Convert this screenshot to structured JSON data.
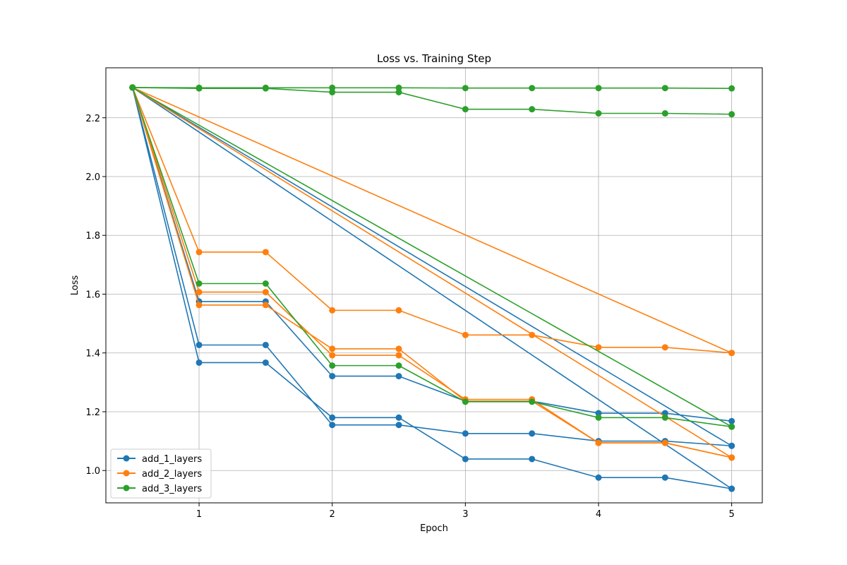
{
  "chart_data": {
    "type": "line",
    "title": "Loss vs. Training Step",
    "xlabel": "Epoch",
    "ylabel": "Loss",
    "xlim": [
      0.3,
      5.23
    ],
    "ylim": [
      0.89,
      2.37
    ],
    "xticks": [
      1,
      2,
      3,
      4,
      5
    ],
    "yticks": [
      1.0,
      1.2,
      1.4,
      1.6,
      1.8,
      2.0,
      2.2
    ],
    "ytick_labels": [
      "1.0",
      "1.2",
      "1.4",
      "1.6",
      "1.8",
      "2.0",
      "2.2"
    ],
    "grid": true,
    "legend_position": "lower-left",
    "colors": {
      "add_1_layers": "#1f77b4",
      "add_2_layers": "#ff7f0e",
      "add_3_layers": "#2ca02c"
    },
    "series": [
      {
        "name": "add_1_layers",
        "x": [
          0.5,
          1,
          1.5,
          2,
          2.5,
          3,
          3.5,
          4,
          4.5,
          5
        ],
        "y": [
          2.303,
          1.367,
          1.367,
          1.18,
          1.18,
          1.039,
          1.039,
          0.976,
          0.976,
          0.938
        ]
      },
      {
        "name": "add_1_layers",
        "x": [
          0.5,
          1,
          1.5,
          2,
          2.5,
          3,
          3.5,
          4,
          4.5,
          5
        ],
        "y": [
          2.303,
          1.427,
          1.427,
          1.155,
          1.155,
          1.126,
          1.126,
          1.1,
          1.1,
          1.084
        ]
      },
      {
        "name": "add_1_layers",
        "x": [
          0.5,
          1,
          1.5,
          2,
          2.5,
          3,
          3.5,
          4,
          4.5,
          5
        ],
        "y": [
          2.303,
          1.575,
          1.575,
          1.321,
          1.321,
          1.236,
          1.236,
          1.195,
          1.195,
          1.168
        ]
      },
      {
        "name": "add_1_layers",
        "x": [
          0.5,
          5
        ],
        "y": [
          2.303,
          1.084
        ]
      },
      {
        "name": "add_1_layers",
        "x": [
          0.5,
          5
        ],
        "y": [
          2.303,
          0.938
        ]
      },
      {
        "name": "add_2_layers",
        "x": [
          0.5,
          1,
          1.5,
          2,
          2.5,
          3,
          3.5,
          4,
          4.5,
          5
        ],
        "y": [
          2.303,
          1.743,
          1.743,
          1.545,
          1.545,
          1.461,
          1.461,
          1.419,
          1.419,
          1.4
        ]
      },
      {
        "name": "add_2_layers",
        "x": [
          0.5,
          1,
          1.5,
          2,
          2.5,
          3,
          3.5,
          4,
          4.5,
          5
        ],
        "y": [
          2.303,
          1.607,
          1.607,
          1.392,
          1.392,
          1.242,
          1.242,
          1.094,
          1.094,
          1.044
        ]
      },
      {
        "name": "add_2_layers",
        "x": [
          0.5,
          1,
          1.5,
          2,
          2.5,
          3,
          3.5,
          4,
          4.5,
          5
        ],
        "y": [
          2.303,
          1.563,
          1.563,
          1.414,
          1.414,
          1.236,
          1.236,
          1.094,
          1.094,
          1.044
        ]
      },
      {
        "name": "add_2_layers",
        "x": [
          0.5,
          5
        ],
        "y": [
          2.303,
          1.4
        ]
      },
      {
        "name": "add_2_layers",
        "x": [
          0.5,
          5
        ],
        "y": [
          2.303,
          1.044
        ]
      },
      {
        "name": "add_3_layers",
        "x": [
          0.5,
          1,
          1.5,
          2,
          2.5,
          3,
          3.5,
          4,
          4.5,
          5
        ],
        "y": [
          2.303,
          2.302,
          2.302,
          2.302,
          2.302,
          2.301,
          2.301,
          2.301,
          2.301,
          2.3
        ]
      },
      {
        "name": "add_3_layers",
        "x": [
          0.5,
          1,
          1.5,
          2,
          2.5,
          3,
          3.5,
          4,
          4.5,
          5
        ],
        "y": [
          2.303,
          2.3,
          2.3,
          2.287,
          2.287,
          2.229,
          2.229,
          2.215,
          2.215,
          2.212
        ]
      },
      {
        "name": "add_3_layers",
        "x": [
          0.5,
          1,
          1.5,
          2,
          2.5,
          3,
          3.5,
          4,
          4.5,
          5
        ],
        "y": [
          2.303,
          1.636,
          1.636,
          1.357,
          1.357,
          1.234,
          1.234,
          1.18,
          1.18,
          1.149
        ]
      },
      {
        "name": "add_3_layers",
        "x": [
          0.5,
          5
        ],
        "y": [
          2.303,
          1.149
        ]
      }
    ],
    "legend": [
      "add_1_layers",
      "add_2_layers",
      "add_3_layers"
    ]
  }
}
